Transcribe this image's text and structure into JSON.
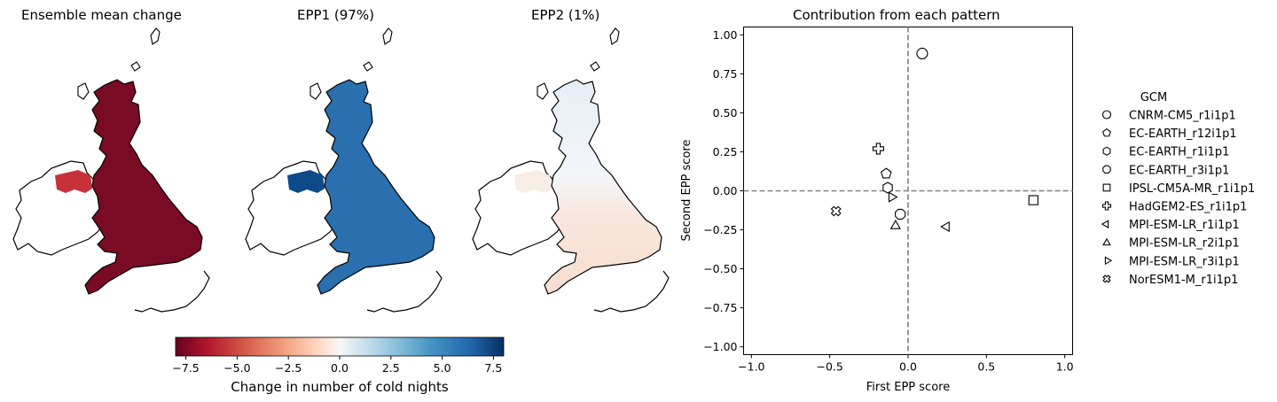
{
  "maps": [
    {
      "title": "Ensemble mean change",
      "shade": "#7a0b24",
      "ireland_patch": "#c7323a"
    },
    {
      "title": "EPP1 (97%)",
      "shade": "#2a6fae",
      "ireland_patch": "#0d4a8a"
    },
    {
      "title": "EPP2 (1%)",
      "shade": "#f3f6fa",
      "ireland_patch": "#f7ece6"
    }
  ],
  "colorbar": {
    "label": "Change in number of cold nights",
    "ticks": [
      "−7.5",
      "−5.0",
      "−2.5",
      "0.0",
      "2.5",
      "5.0",
      "7.5"
    ],
    "tick_values": [
      -7.5,
      -5.0,
      -2.5,
      0.0,
      2.5,
      5.0,
      7.5
    ],
    "range": [
      -8,
      8
    ],
    "colormap": "RdBu"
  },
  "chart_data": {
    "type": "scatter",
    "title": "Contribution from each pattern",
    "xlabel": "First EPP score",
    "ylabel": "Second EPP score",
    "xlim": [
      -1.05,
      1.05
    ],
    "ylim": [
      -1.05,
      1.05
    ],
    "xticks": [
      "−1.0",
      "−0.5",
      "0.0",
      "0.5",
      "1.0"
    ],
    "xtick_values": [
      -1.0,
      -0.5,
      0.0,
      0.5,
      1.0
    ],
    "yticks": [
      "1.00",
      "0.75",
      "0.50",
      "0.25",
      "0.00",
      "−0.25",
      "−0.50",
      "−0.75",
      "−1.00"
    ],
    "ytick_values": [
      1.0,
      0.75,
      0.5,
      0.25,
      0.0,
      -0.25,
      -0.5,
      -0.75,
      -1.0
    ],
    "reference_lines": {
      "x": 0,
      "y": 0,
      "style": "dashed",
      "color": "#808080"
    },
    "legend_title": "GCM",
    "legend_position": "right, outside",
    "series": [
      {
        "name": "CNRM-CM5_r1i1p1",
        "marker": "circle",
        "x": 0.09,
        "y": 0.88
      },
      {
        "name": "EC-EARTH_r12i1p1",
        "marker": "pentagon",
        "x": -0.14,
        "y": 0.11
      },
      {
        "name": "EC-EARTH_r1i1p1",
        "marker": "hexagon",
        "x": -0.13,
        "y": 0.02
      },
      {
        "name": "EC-EARTH_r3i1p1",
        "marker": "octagon",
        "x": -0.05,
        "y": -0.15
      },
      {
        "name": "IPSL-CM5A-MR_r1i1p1",
        "marker": "square",
        "x": 0.8,
        "y": -0.06
      },
      {
        "name": "HadGEM2-ES_r1i1p1",
        "marker": "plus",
        "x": -0.19,
        "y": 0.27
      },
      {
        "name": "MPI-ESM-LR_r1i1p1",
        "marker": "triangle-left",
        "x": 0.25,
        "y": -0.23
      },
      {
        "name": "MPI-ESM-LR_r2i1p1",
        "marker": "triangle-up",
        "x": -0.08,
        "y": -0.22
      },
      {
        "name": "MPI-ESM-LR_r3i1p1",
        "marker": "triangle-right",
        "x": -0.11,
        "y": -0.04
      },
      {
        "name": "NorESM1-M_r1i1p1",
        "marker": "x-filled",
        "x": -0.46,
        "y": -0.13
      }
    ]
  }
}
